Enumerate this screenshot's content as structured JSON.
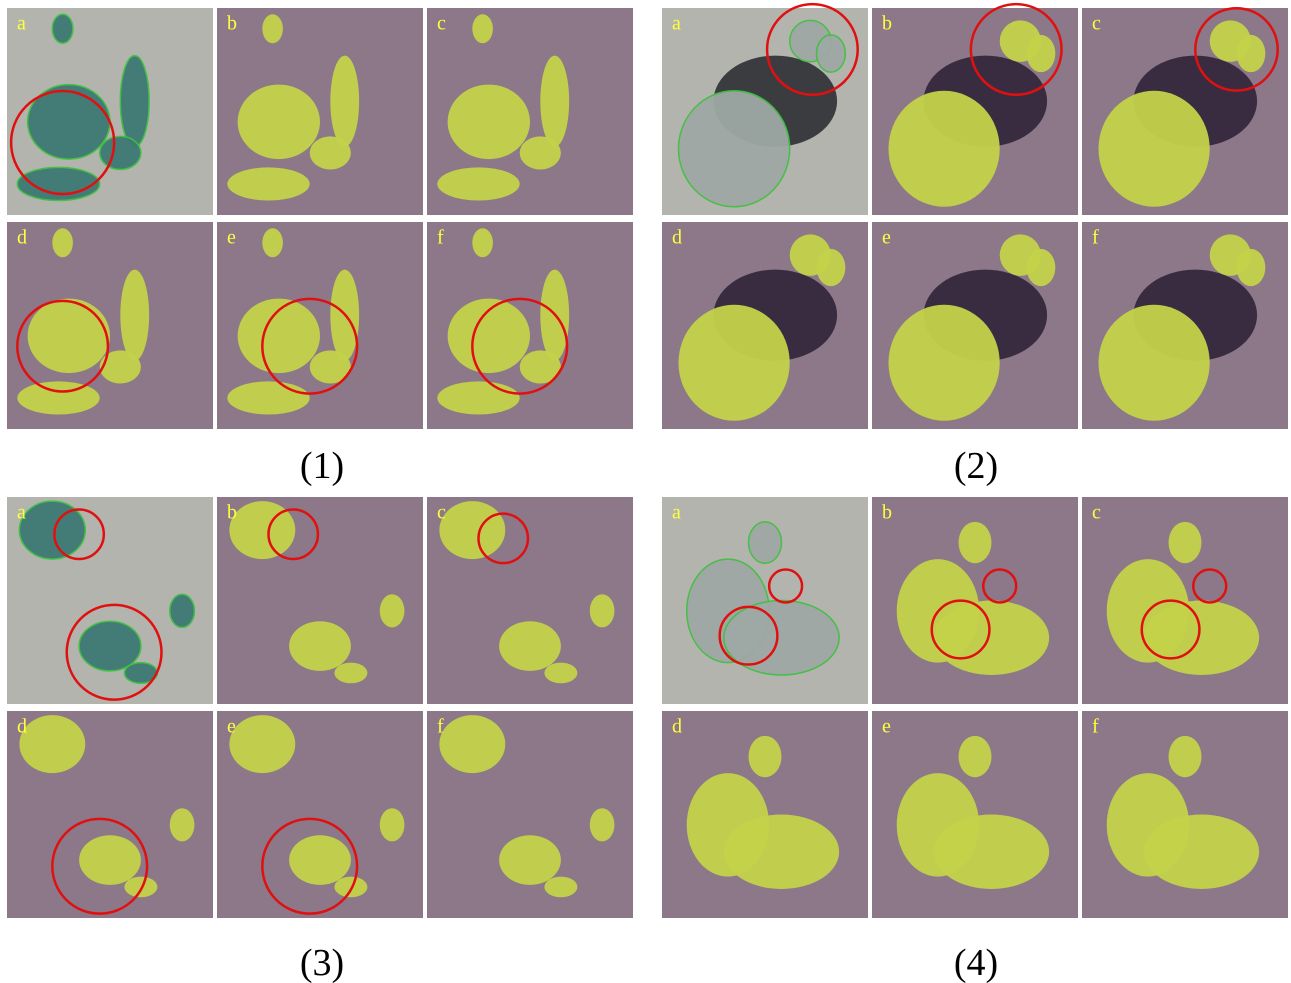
{
  "groups": [
    {
      "label": "(1)",
      "panels": [
        "a",
        "b",
        "c",
        "d",
        "e",
        "f"
      ]
    },
    {
      "label": "(2)",
      "panels": [
        "a",
        "b",
        "c",
        "d",
        "e",
        "f"
      ]
    },
    {
      "label": "(3)",
      "panels": [
        "a",
        "b",
        "c",
        "d",
        "e",
        "f"
      ]
    },
    {
      "label": "(4)",
      "panels": [
        "a",
        "b",
        "c",
        "d",
        "e",
        "f"
      ]
    }
  ]
}
